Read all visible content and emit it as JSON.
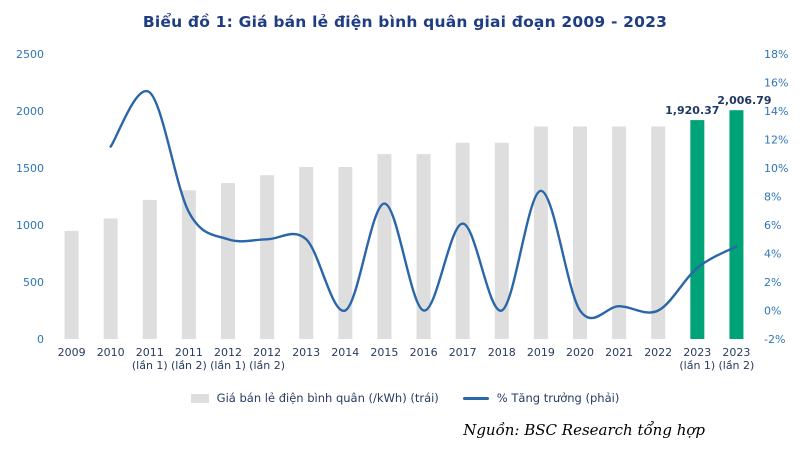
{
  "title": "Biểu đồ 1: Giá bán lẻ điện bình quân giai đoạn 2009 - 2023",
  "legend": {
    "bars": "Giá bán lẻ điện bình quân (/kWh) (trái)",
    "line": "% Tăng trưởng (phải)"
  },
  "footer": {
    "source": "Nguồn: BSC Research tổng hợp"
  },
  "colors": {
    "title": "#1f3d82",
    "bar": "#dedede",
    "highlight_bar": "#00a377",
    "line": "#2a66a8",
    "axis_tick": "#2e75b6",
    "data_label": "#1f3864"
  },
  "chart_data": {
    "type": "combo-bar-line",
    "title": "Biểu đồ 1: Giá bán lẻ điện bình quân giai đoạn 2009 - 2023",
    "categories": [
      "2009",
      "2010",
      "2011 (lần 1)",
      "2011 (lần 2)",
      "2012 (lần 1)",
      "2012 (lần 2)",
      "2013",
      "2014",
      "2015",
      "2016",
      "2017",
      "2018",
      "2019",
      "2020",
      "2021",
      "2022",
      "2023 (lần 1)",
      "2023 (lần 2)"
    ],
    "series": [
      {
        "name": "Giá bán lẻ điện bình quân (/kWh) (trái)",
        "type": "bar",
        "axis": "left",
        "values": [
          948,
          1058,
          1220,
          1304,
          1369,
          1437,
          1509,
          1509,
          1622,
          1622,
          1721,
          1721,
          1864,
          1864,
          1864,
          1864,
          1920.37,
          2006.79
        ],
        "highlight_indices": [
          16,
          17
        ]
      },
      {
        "name": "% Tăng trưởng (phải)",
        "type": "line",
        "axis": "right",
        "values": [
          null,
          11.5,
          15.3,
          6.9,
          5.0,
          5.0,
          5.0,
          0.0,
          7.5,
          0.0,
          6.1,
          0.0,
          8.4,
          0.0,
          0.3,
          0.0,
          3.0,
          4.5
        ]
      }
    ],
    "data_labels": [
      {
        "index": 16,
        "text": "1,920.37"
      },
      {
        "index": 17,
        "text": "2,006.79"
      }
    ],
    "left_axis": {
      "min": 0,
      "max": 2500,
      "ticks": [
        0,
        500,
        1000,
        1500,
        2000,
        2500
      ]
    },
    "right_axis": {
      "min": -2,
      "max": 18,
      "ticks": [
        "-2%",
        "0%",
        "2%",
        "4%",
        "6%",
        "8%",
        "10%",
        "12%",
        "14%",
        "16%",
        "18%"
      ]
    },
    "grid": false,
    "legend_position": "bottom"
  }
}
